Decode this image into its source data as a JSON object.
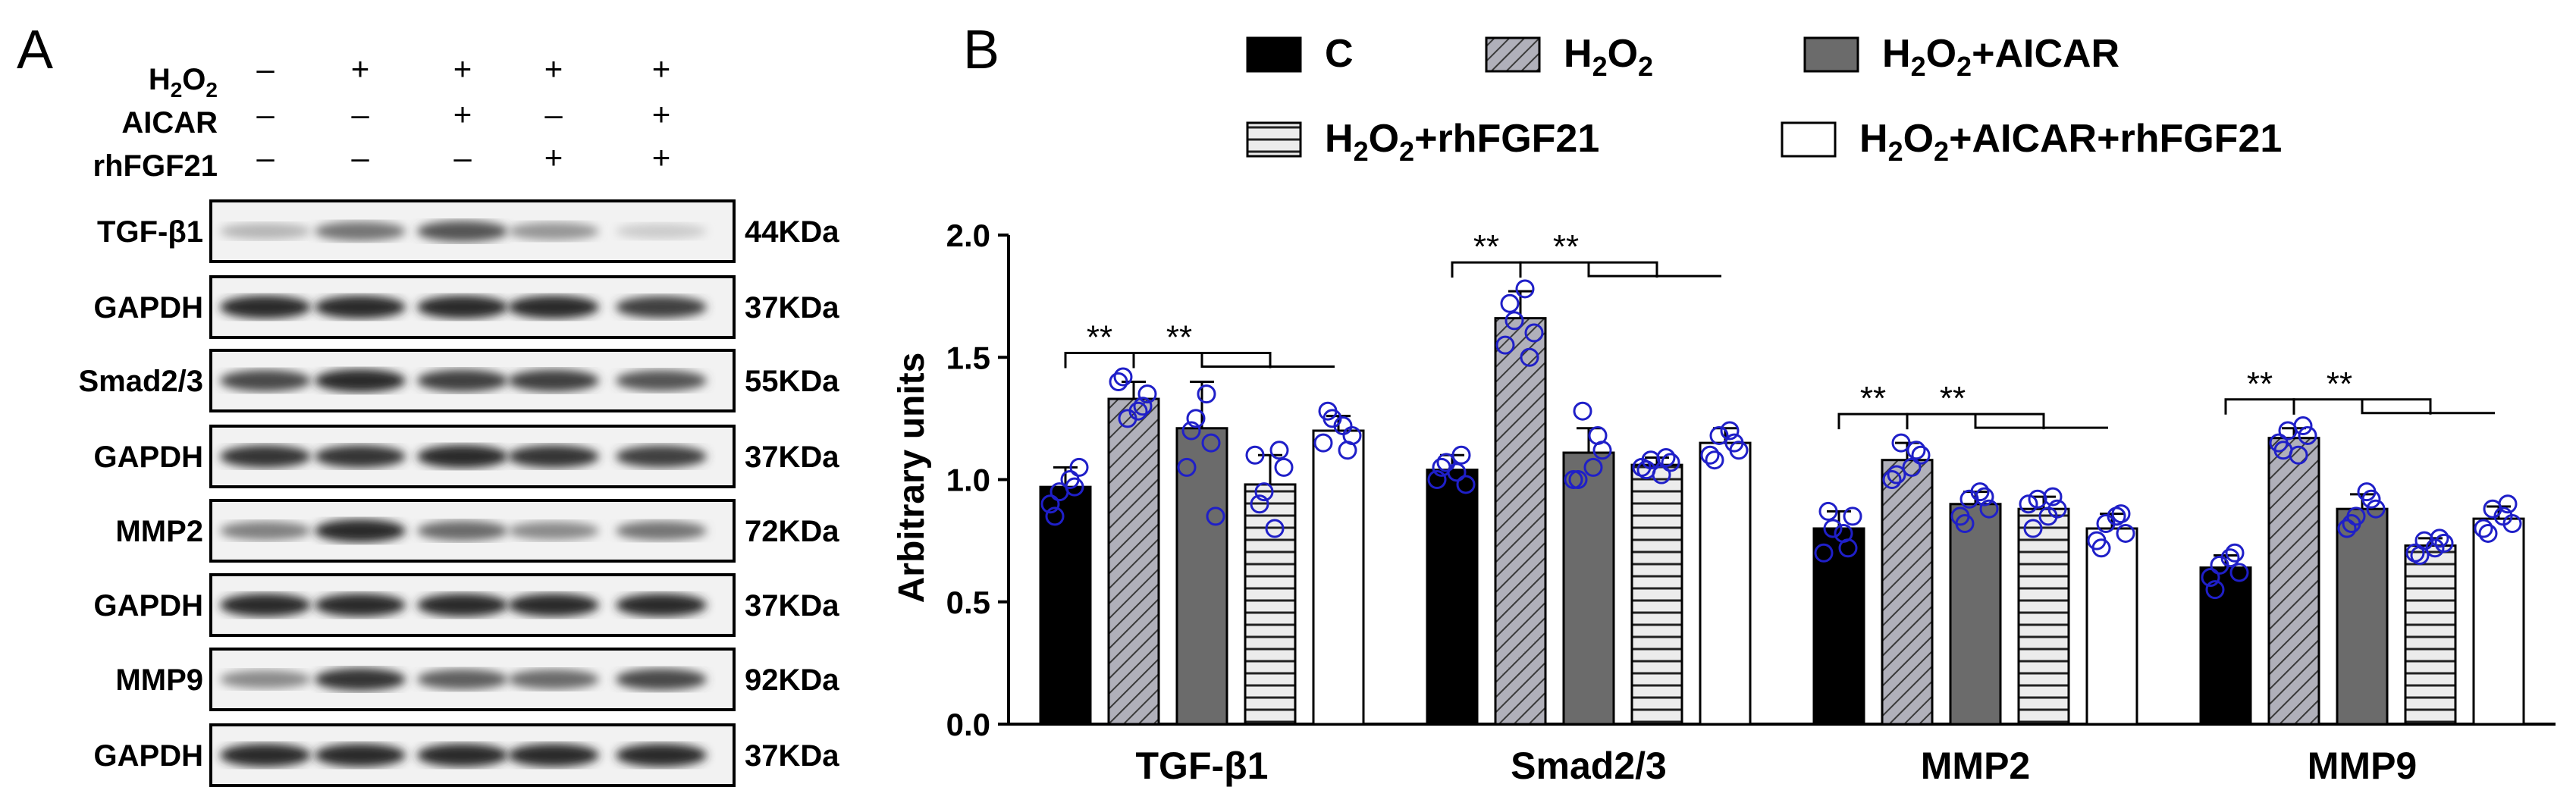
{
  "panel_a": {
    "label": "A",
    "conditions": [
      {
        "name": "H2O2",
        "name_main": "H",
        "name_sub": "2",
        "name_end": "O",
        "name_sub2": "2",
        "signs": [
          "–",
          "+",
          "+",
          "+",
          "+"
        ]
      },
      {
        "name": "AICAR",
        "signs": [
          "–",
          "–",
          "+",
          "–",
          "+"
        ]
      },
      {
        "name": "rhFGF21",
        "signs": [
          "–",
          "–",
          "–",
          "+",
          "+"
        ]
      }
    ],
    "blots": [
      {
        "protein": "TGF-β1",
        "size": "44KDa",
        "intensity": [
          0.25,
          0.55,
          0.7,
          0.4,
          0.15
        ]
      },
      {
        "protein": "GAPDH",
        "size": "37KDa",
        "intensity": [
          0.9,
          0.9,
          0.9,
          0.9,
          0.8
        ]
      },
      {
        "protein": "Smad2/3",
        "size": "55KDa",
        "intensity": [
          0.75,
          0.9,
          0.8,
          0.8,
          0.7
        ]
      },
      {
        "protein": "GAPDH",
        "size": "37KDa",
        "intensity": [
          0.85,
          0.85,
          0.9,
          0.85,
          0.8
        ]
      },
      {
        "protein": "MMP2",
        "size": "72KDa",
        "intensity": [
          0.5,
          0.9,
          0.6,
          0.45,
          0.55
        ]
      },
      {
        "protein": "GAPDH",
        "size": "37KDa",
        "intensity": [
          0.9,
          0.9,
          0.9,
          0.9,
          0.9
        ]
      },
      {
        "protein": "MMP9",
        "size": "92KDa",
        "intensity": [
          0.45,
          0.85,
          0.65,
          0.6,
          0.75
        ]
      },
      {
        "protein": "GAPDH",
        "size": "37KDa",
        "intensity": [
          0.9,
          0.9,
          0.9,
          0.9,
          0.9
        ]
      }
    ]
  },
  "chart_data": {
    "type": "bar",
    "panel_label": "B",
    "title": "",
    "xlabel": "",
    "ylabel": "Arbitrary units",
    "ylim": [
      0,
      2.0
    ],
    "yticks": [
      "0.0",
      "0.5",
      "1.0",
      "1.5",
      "2.0"
    ],
    "categories": [
      "TGF-β1",
      "Smad2/3",
      "MMP2",
      "MMP9"
    ],
    "significance_label": "**",
    "series": [
      {
        "name": "C",
        "legend_main": "C",
        "fill": "#000000",
        "pattern": "solid",
        "values": [
          0.97,
          1.04,
          0.8,
          0.64
        ],
        "sd": [
          0.08,
          0.06,
          0.07,
          0.05
        ],
        "points": [
          [
            0.9,
            0.95,
            1.0,
            1.05,
            0.85,
            0.97
          ],
          [
            1.0,
            1.07,
            1.03,
            0.98,
            1.05,
            1.1
          ],
          [
            0.7,
            0.8,
            0.78,
            0.85,
            0.87,
            0.72
          ],
          [
            0.6,
            0.65,
            0.68,
            0.62,
            0.55,
            0.7
          ]
        ]
      },
      {
        "name": "H2O2",
        "legend_main": "H",
        "legend_sub": "2",
        "legend_end": "O",
        "legend_sub2": "2",
        "fill": "#a8a8b4",
        "pattern": "diagonal",
        "values": [
          1.33,
          1.66,
          1.08,
          1.17
        ],
        "sd": [
          0.07,
          0.11,
          0.07,
          0.04
        ],
        "points": [
          [
            1.4,
            1.25,
            1.28,
            1.35,
            1.42,
            1.3
          ],
          [
            1.55,
            1.65,
            1.78,
            1.6,
            1.72,
            1.5
          ],
          [
            1.0,
            1.15,
            1.05,
            1.1,
            1.02,
            1.12
          ],
          [
            1.15,
            1.2,
            1.1,
            1.18,
            1.12,
            1.22
          ]
        ]
      },
      {
        "name": "H2O2+AICAR",
        "legend_main": "H",
        "legend_sub": "2",
        "legend_end": "O",
        "legend_sub2": "2",
        "legend_tail": "+AICAR",
        "fill": "#6b6b6b",
        "pattern": "solid",
        "values": [
          1.21,
          1.11,
          0.9,
          0.88
        ],
        "sd": [
          0.19,
          0.1,
          0.05,
          0.06
        ],
        "points": [
          [
            1.05,
            1.25,
            1.35,
            0.85,
            1.2,
            1.15
          ],
          [
            1.0,
            1.28,
            1.05,
            1.12,
            1.0,
            1.18
          ],
          [
            0.85,
            0.92,
            0.95,
            0.88,
            0.82,
            0.93
          ],
          [
            0.8,
            0.85,
            0.95,
            0.88,
            0.82,
            0.92
          ]
        ]
      },
      {
        "name": "H2O2+rhFGF21",
        "legend_main": "H",
        "legend_sub": "2",
        "legend_end": "O",
        "legend_sub2": "2",
        "legend_tail": "+rhFGF21",
        "fill": "#e6e6e6",
        "pattern": "horizontal",
        "values": [
          0.98,
          1.06,
          0.88,
          0.73
        ],
        "sd": [
          0.12,
          0.03,
          0.05,
          0.03
        ],
        "points": [
          [
            1.1,
            0.95,
            0.8,
            1.05,
            0.9,
            1.12
          ],
          [
            1.05,
            1.08,
            1.02,
            1.07,
            1.04,
            1.09
          ],
          [
            0.9,
            0.92,
            0.85,
            0.88,
            0.8,
            0.93
          ],
          [
            0.7,
            0.75,
            0.72,
            0.74,
            0.69,
            0.76
          ]
        ]
      },
      {
        "name": "H2O2+AICAR+rhFGF21",
        "legend_main": "H",
        "legend_sub": "2",
        "legend_end": "O",
        "legend_sub2": "2",
        "legend_tail": "+AICAR+rhFGF21",
        "fill": "#ffffff",
        "pattern": "solid",
        "values": [
          1.2,
          1.15,
          0.8,
          0.84
        ],
        "sd": [
          0.06,
          0.06,
          0.06,
          0.05
        ],
        "points": [
          [
            1.15,
            1.25,
            1.22,
            1.18,
            1.28,
            1.12
          ],
          [
            1.1,
            1.18,
            1.2,
            1.12,
            1.08,
            1.15
          ],
          [
            0.75,
            0.82,
            0.85,
            0.78,
            0.72,
            0.86
          ],
          [
            0.8,
            0.88,
            0.85,
            0.82,
            0.78,
            0.9
          ]
        ]
      }
    ]
  }
}
